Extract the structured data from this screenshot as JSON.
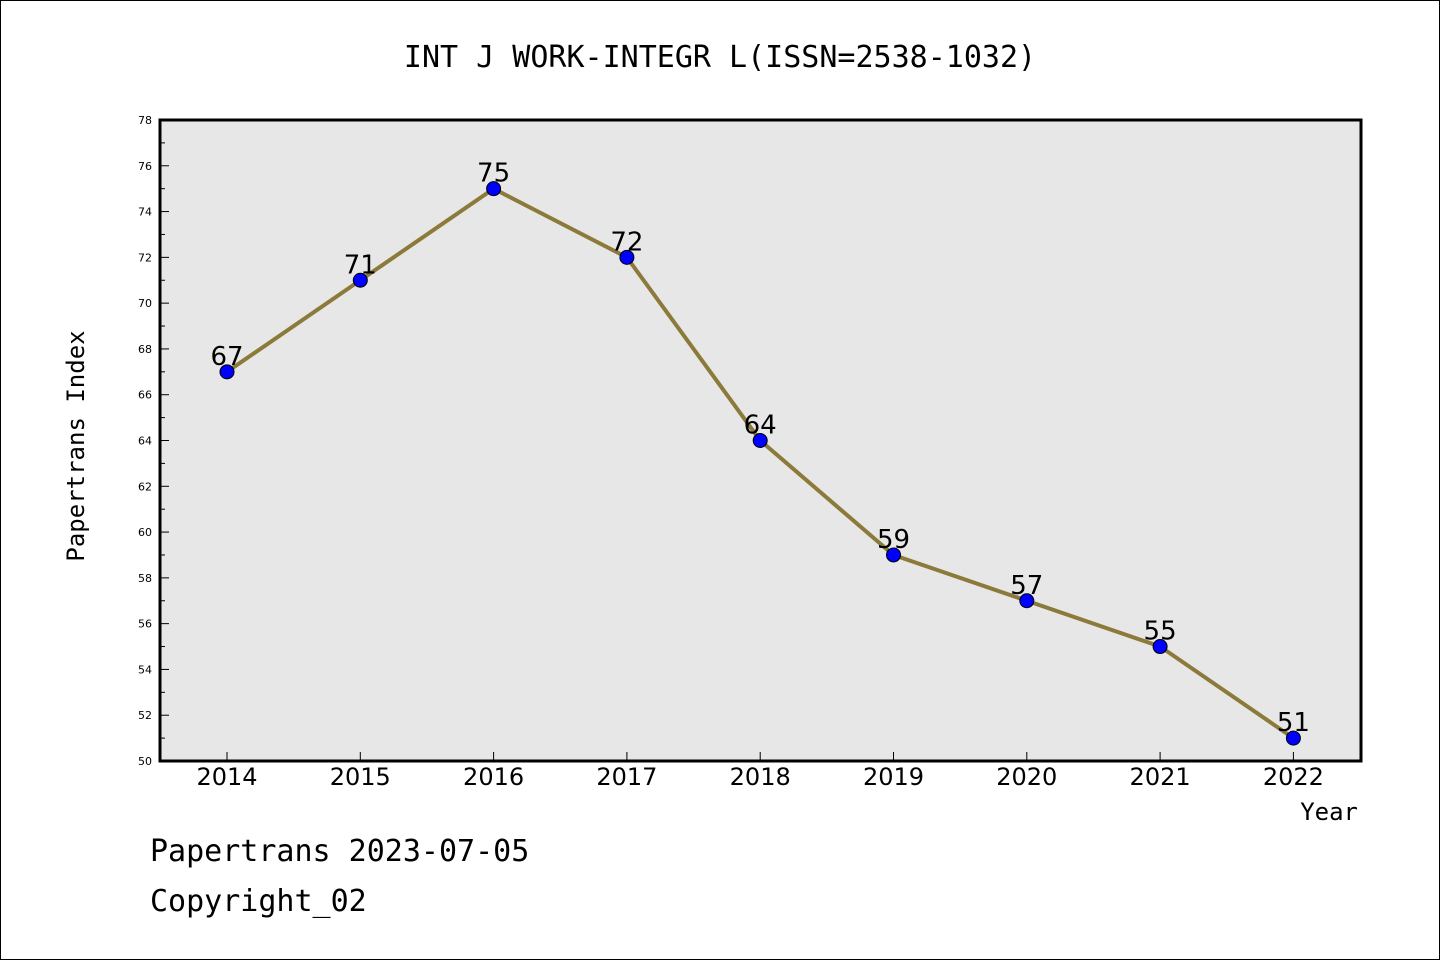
{
  "chart_data": {
    "type": "line",
    "title": "INT J WORK-INTEGR L(ISSN=2538-1032)",
    "xlabel": "Year",
    "ylabel": "Papertrans Index",
    "categories": [
      "2014",
      "2015",
      "2016",
      "2017",
      "2018",
      "2019",
      "2020",
      "2021",
      "2022"
    ],
    "values": [
      67,
      71,
      75,
      72,
      64,
      59,
      57,
      55,
      51
    ],
    "ylim": [
      50,
      78
    ],
    "yticks": [
      "50",
      "52",
      "54",
      "56",
      "58",
      "60",
      "62",
      "64",
      "66",
      "68",
      "70",
      "72",
      "74",
      "76",
      "78"
    ],
    "grid": false,
    "colors": {
      "line": "#8B7A3A",
      "marker": "#0000FF",
      "plot_background": "#E7E7E7"
    }
  },
  "footer": {
    "line1": "Papertrans 2023-07-05",
    "line2": "Copyright_02"
  }
}
